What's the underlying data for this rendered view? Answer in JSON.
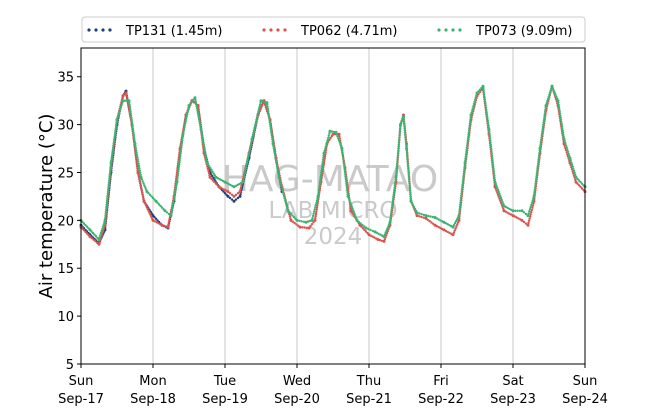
{
  "chart_data": {
    "type": "scatter",
    "title": "",
    "xlabel": "",
    "ylabel": "Air temperature (°C)",
    "ylim": [
      5,
      38
    ],
    "xlim": [
      "2023-09-17T00:00",
      "2023-09-24T00:00"
    ],
    "yticks": [
      "5",
      "10",
      "15",
      "20",
      "25",
      "30",
      "35"
    ],
    "xticks": [
      {
        "day": "Sun",
        "date": "Sep-17"
      },
      {
        "day": "Mon",
        "date": "Sep-18"
      },
      {
        "day": "Tue",
        "date": "Sep-19"
      },
      {
        "day": "Wed",
        "date": "Sep-20"
      },
      {
        "day": "Thu",
        "date": "Sep-21"
      },
      {
        "day": "Fri",
        "date": "Sep-22"
      },
      {
        "day": "Sat",
        "date": "Sep-23"
      },
      {
        "day": "Sun",
        "date": "Sep-24"
      }
    ],
    "grid": "vertical",
    "legend_position": "top",
    "watermark": [
      "HAG-MATAO",
      "LAB MICRO",
      "2024"
    ],
    "series": [
      {
        "name": "TP131 (1.45m)",
        "color": "#1f3f7a",
        "points": [
          [
            "2023-09-17T00:00",
            19.5
          ],
          [
            "2023-09-17T03:00",
            18.5
          ],
          [
            "2023-09-17T06:00",
            17.6
          ],
          [
            "2023-09-17T08:00",
            19.0
          ],
          [
            "2023-09-17T10:00",
            25.0
          ],
          [
            "2023-09-17T12:00",
            30.0
          ],
          [
            "2023-09-17T14:00",
            33.0
          ],
          [
            "2023-09-17T15:00",
            33.5
          ],
          [
            "2023-09-17T17:00",
            30.0
          ],
          [
            "2023-09-17T19:00",
            25.0
          ],
          [
            "2023-09-17T21:00",
            22.0
          ],
          [
            "2023-09-18T00:00",
            20.5
          ],
          [
            "2023-09-18T03:00",
            19.5
          ],
          [
            "2023-09-18T05:00",
            19.2
          ],
          [
            "2023-09-18T07:00",
            22.0
          ],
          [
            "2023-09-18T09:00",
            27.0
          ],
          [
            "2023-09-18T11:00",
            31.0
          ],
          [
            "2023-09-18T13:00",
            32.5
          ],
          [
            "2023-09-18T15:00",
            32.0
          ],
          [
            "2023-09-18T17:00",
            27.5
          ],
          [
            "2023-09-18T19:00",
            25.0
          ],
          [
            "2023-09-18T22:00",
            23.5
          ],
          [
            "2023-09-19T01:00",
            22.5
          ],
          [
            "2023-09-19T03:00",
            22.0
          ],
          [
            "2023-09-19T05:00",
            22.5
          ],
          [
            "2023-09-19T08:00",
            26.5
          ],
          [
            "2023-09-19T11:00",
            31.0
          ],
          [
            "2023-09-19T13:00",
            32.5
          ],
          [
            "2023-09-19T15:00",
            30.5
          ],
          [
            "2023-09-19T17:00",
            26.5
          ],
          [
            "2023-09-19T19:00",
            23.0
          ]
        ]
      },
      {
        "name": "TP062 (4.71m)",
        "color": "#d9534f",
        "points": [
          [
            "2023-09-17T00:00",
            19.3
          ],
          [
            "2023-09-17T03:00",
            18.3
          ],
          [
            "2023-09-17T06:00",
            17.5
          ],
          [
            "2023-09-17T08:00",
            19.5
          ],
          [
            "2023-09-17T10:00",
            25.5
          ],
          [
            "2023-09-17T12:00",
            30.5
          ],
          [
            "2023-09-17T14:00",
            33.0
          ],
          [
            "2023-09-17T15:00",
            33.3
          ],
          [
            "2023-09-17T17:00",
            30.0
          ],
          [
            "2023-09-17T19:00",
            25.0
          ],
          [
            "2023-09-17T21:00",
            22.0
          ],
          [
            "2023-09-18T00:00",
            20.0
          ],
          [
            "2023-09-18T03:00",
            19.5
          ],
          [
            "2023-09-18T05:00",
            19.3
          ],
          [
            "2023-09-18T07:00",
            22.5
          ],
          [
            "2023-09-18T09:00",
            27.5
          ],
          [
            "2023-09-18T11:00",
            31.0
          ],
          [
            "2023-09-18T13:00",
            32.5
          ],
          [
            "2023-09-18T15:00",
            32.0
          ],
          [
            "2023-09-18T17:00",
            27.0
          ],
          [
            "2023-09-18T19:00",
            24.5
          ],
          [
            "2023-09-18T22:00",
            23.5
          ],
          [
            "2023-09-19T01:00",
            23.0
          ],
          [
            "2023-09-19T03:00",
            22.5
          ],
          [
            "2023-09-19T05:00",
            23.0
          ],
          [
            "2023-09-19T08:00",
            27.0
          ],
          [
            "2023-09-19T11:00",
            31.0
          ],
          [
            "2023-09-19T13:00",
            32.5
          ],
          [
            "2023-09-19T15:00",
            30.5
          ],
          [
            "2023-09-19T17:00",
            26.5
          ],
          [
            "2023-09-19T19:00",
            23.5
          ],
          [
            "2023-09-19T22:00",
            20.0
          ],
          [
            "2023-09-20T01:00",
            19.3
          ],
          [
            "2023-09-20T04:00",
            19.2
          ],
          [
            "2023-09-20T06:00",
            20.0
          ],
          [
            "2023-09-20T08:00",
            24.0
          ],
          [
            "2023-09-20T10:00",
            28.0
          ],
          [
            "2023-09-20T12:00",
            29.0
          ],
          [
            "2023-09-20T14:00",
            29.0
          ],
          [
            "2023-09-20T16:00",
            25.5
          ],
          [
            "2023-09-20T18:00",
            21.0
          ],
          [
            "2023-09-20T21:00",
            19.5
          ],
          [
            "2023-09-21T00:00",
            18.5
          ],
          [
            "2023-09-21T03:00",
            18.0
          ],
          [
            "2023-09-21T05:00",
            17.8
          ],
          [
            "2023-09-21T07:00",
            19.5
          ],
          [
            "2023-09-21T09:00",
            24.0
          ],
          [
            "2023-09-21T10:30",
            30.0
          ],
          [
            "2023-09-21T11:30",
            31.0
          ],
          [
            "2023-09-21T12:30",
            28.0
          ],
          [
            "2023-09-21T14:00",
            22.0
          ],
          [
            "2023-09-21T16:00",
            20.5
          ],
          [
            "2023-09-21T19:00",
            20.2
          ],
          [
            "2023-09-21T22:00",
            19.5
          ],
          [
            "2023-09-22T01:00",
            19.0
          ],
          [
            "2023-09-22T04:00",
            18.5
          ],
          [
            "2023-09-22T06:00",
            20.0
          ],
          [
            "2023-09-22T08:00",
            25.5
          ],
          [
            "2023-09-22T10:00",
            30.5
          ],
          [
            "2023-09-22T12:00",
            33.0
          ],
          [
            "2023-09-22T14:00",
            33.8
          ],
          [
            "2023-09-22T16:00",
            29.0
          ],
          [
            "2023-09-22T18:00",
            23.5
          ],
          [
            "2023-09-22T21:00",
            21.0
          ],
          [
            "2023-09-23T00:00",
            20.5
          ],
          [
            "2023-09-23T03:00",
            20.0
          ],
          [
            "2023-09-23T05:00",
            19.5
          ],
          [
            "2023-09-23T07:00",
            22.0
          ],
          [
            "2023-09-23T09:00",
            27.0
          ],
          [
            "2023-09-23T11:00",
            31.5
          ],
          [
            "2023-09-23T13:00",
            34.0
          ],
          [
            "2023-09-23T15:00",
            32.0
          ],
          [
            "2023-09-23T17:00",
            28.0
          ],
          [
            "2023-09-23T19:00",
            26.0
          ],
          [
            "2023-09-23T21:00",
            24.0
          ],
          [
            "2023-09-24T00:00",
            23.0
          ]
        ]
      },
      {
        "name": "TP073 (9.09m)",
        "color": "#3cb371",
        "points": [
          [
            "2023-09-17T00:00",
            20.0
          ],
          [
            "2023-09-17T03:00",
            19.0
          ],
          [
            "2023-09-17T06:00",
            18.0
          ],
          [
            "2023-09-17T08:00",
            20.0
          ],
          [
            "2023-09-17T10:00",
            26.0
          ],
          [
            "2023-09-17T12:00",
            30.5
          ],
          [
            "2023-09-17T14:00",
            32.5
          ],
          [
            "2023-09-17T16:00",
            32.5
          ],
          [
            "2023-09-17T18:00",
            28.0
          ],
          [
            "2023-09-17T20:00",
            24.5
          ],
          [
            "2023-09-17T22:00",
            23.0
          ],
          [
            "2023-09-18T01:00",
            22.0
          ],
          [
            "2023-09-18T04:00",
            21.0
          ],
          [
            "2023-09-18T06:00",
            20.5
          ],
          [
            "2023-09-18T08:00",
            24.0
          ],
          [
            "2023-09-18T10:00",
            29.0
          ],
          [
            "2023-09-18T12:00",
            32.0
          ],
          [
            "2023-09-18T14:00",
            32.8
          ],
          [
            "2023-09-18T16:00",
            29.5
          ],
          [
            "2023-09-18T18:00",
            26.0
          ],
          [
            "2023-09-18T21:00",
            24.5
          ],
          [
            "2023-09-19T00:00",
            24.0
          ],
          [
            "2023-09-19T03:00",
            23.5
          ],
          [
            "2023-09-19T06:00",
            24.0
          ],
          [
            "2023-09-19T09:00",
            28.5
          ],
          [
            "2023-09-19T12:00",
            32.5
          ],
          [
            "2023-09-19T14:00",
            32.3
          ],
          [
            "2023-09-19T16:00",
            28.0
          ],
          [
            "2023-09-19T18:00",
            24.5
          ],
          [
            "2023-09-19T21:00",
            21.0
          ],
          [
            "2023-09-20T00:00",
            20.0
          ],
          [
            "2023-09-20T03:00",
            19.8
          ],
          [
            "2023-09-20T05:00",
            20.0
          ],
          [
            "2023-09-20T07:00",
            22.5
          ],
          [
            "2023-09-20T09:00",
            27.0
          ],
          [
            "2023-09-20T11:00",
            29.3
          ],
          [
            "2023-09-20T13:00",
            29.2
          ],
          [
            "2023-09-20T15:00",
            27.5
          ],
          [
            "2023-09-20T17:00",
            22.5
          ],
          [
            "2023-09-20T20:00",
            20.0
          ],
          [
            "2023-09-20T23:00",
            19.2
          ],
          [
            "2023-09-21T02:00",
            18.8
          ],
          [
            "2023-09-21T05:00",
            18.3
          ],
          [
            "2023-09-21T07:00",
            19.8
          ],
          [
            "2023-09-21T09:00",
            24.5
          ],
          [
            "2023-09-21T10:30",
            30.0
          ],
          [
            "2023-09-21T11:30",
            30.8
          ],
          [
            "2023-09-21T12:30",
            27.5
          ],
          [
            "2023-09-21T14:00",
            22.0
          ],
          [
            "2023-09-21T16:00",
            20.8
          ],
          [
            "2023-09-21T19:00",
            20.5
          ],
          [
            "2023-09-21T22:00",
            20.3
          ],
          [
            "2023-09-22T01:00",
            19.8
          ],
          [
            "2023-09-22T04:00",
            19.3
          ],
          [
            "2023-09-22T06:00",
            20.5
          ],
          [
            "2023-09-22T08:00",
            26.0
          ],
          [
            "2023-09-22T10:00",
            31.0
          ],
          [
            "2023-09-22T12:00",
            33.3
          ],
          [
            "2023-09-22T14:00",
            34.0
          ],
          [
            "2023-09-22T16:00",
            29.5
          ],
          [
            "2023-09-22T18:00",
            24.0
          ],
          [
            "2023-09-22T21:00",
            21.5
          ],
          [
            "2023-09-23T00:00",
            21.0
          ],
          [
            "2023-09-23T03:00",
            21.0
          ],
          [
            "2023-09-23T05:00",
            20.5
          ],
          [
            "2023-09-23T07:00",
            22.5
          ],
          [
            "2023-09-23T09:00",
            27.5
          ],
          [
            "2023-09-23T11:00",
            32.0
          ],
          [
            "2023-09-23T13:00",
            34.0
          ],
          [
            "2023-09-23T15:00",
            32.5
          ],
          [
            "2023-09-23T17:00",
            28.5
          ],
          [
            "2023-09-23T19:00",
            26.5
          ],
          [
            "2023-09-23T21:00",
            24.5
          ],
          [
            "2023-09-24T00:00",
            23.5
          ]
        ]
      }
    ]
  }
}
